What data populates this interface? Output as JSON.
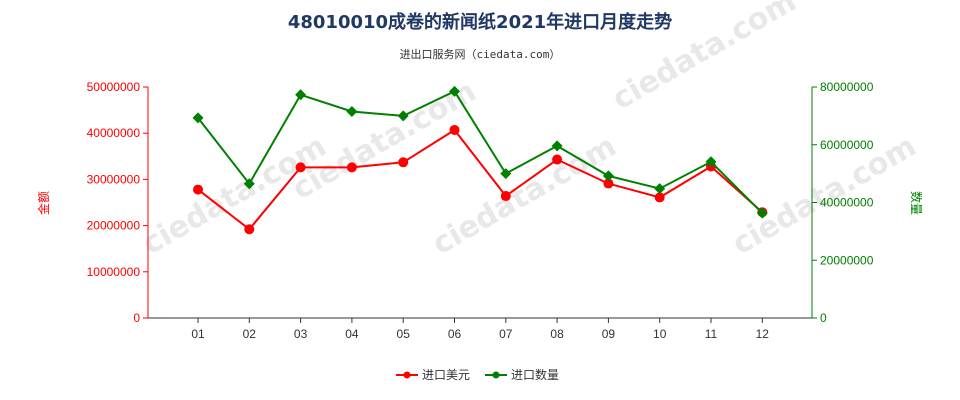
{
  "chart_data": {
    "type": "line",
    "title": "48010010成卷的新闻纸2021年进口月度走势",
    "subtitle": "进出口服务网（ciedata.com）",
    "categories": [
      "01",
      "02",
      "03",
      "04",
      "05",
      "06",
      "07",
      "08",
      "09",
      "10",
      "11",
      "12"
    ],
    "y_left": {
      "label": "金额",
      "lim": [
        0,
        50000000
      ],
      "ticks": [
        "0",
        "10000000",
        "20000000",
        "30000000",
        "40000000",
        "50000000"
      ],
      "color": "#ff0000"
    },
    "y_right": {
      "label": "数量",
      "lim": [
        0,
        80000000
      ],
      "ticks": [
        "0",
        "20000000",
        "40000000",
        "60000000",
        "80000000"
      ],
      "color": "#008000"
    },
    "series": [
      {
        "name": "进口美元",
        "axis": "left",
        "color": "#ff0000",
        "values": [
          27800000,
          19200000,
          32600000,
          32600000,
          33700000,
          40700000,
          26400000,
          34300000,
          29100000,
          26100000,
          32800000,
          22900000
        ]
      },
      {
        "name": "进口数量",
        "axis": "right",
        "color": "#008000",
        "values": [
          69300000,
          46500000,
          77300000,
          71500000,
          70000000,
          78500000,
          50000000,
          59600000,
          49200000,
          44800000,
          54100000,
          36300000
        ]
      }
    ],
    "grid": false,
    "legend_position": "bottom-center"
  }
}
